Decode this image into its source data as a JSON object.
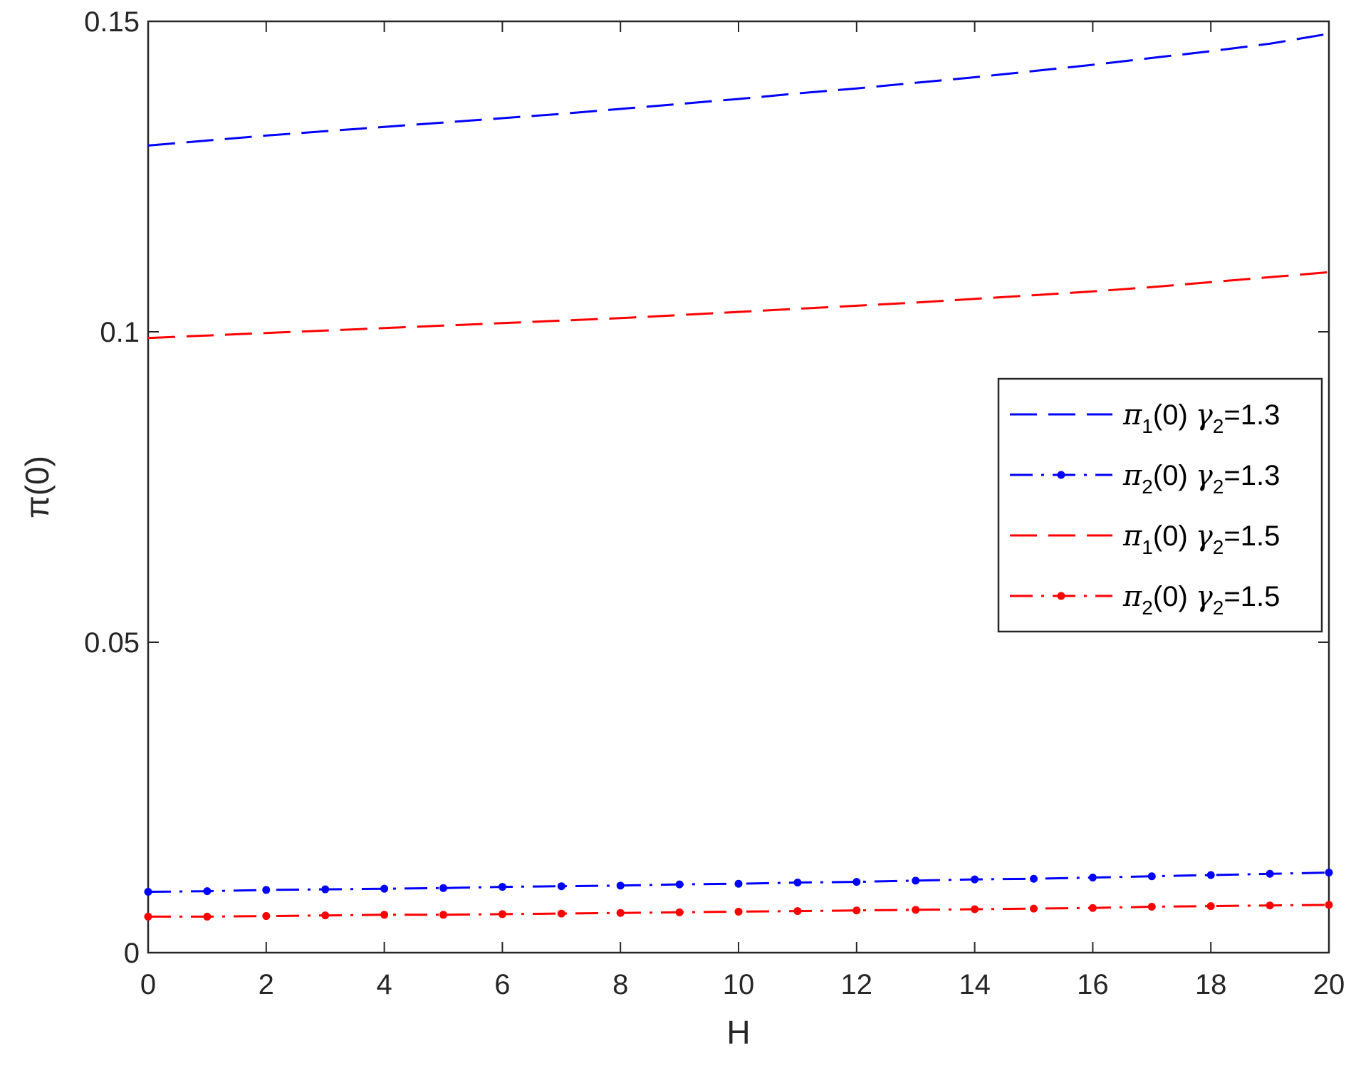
{
  "chart_data": {
    "type": "line",
    "title": "",
    "xlabel": "H",
    "ylabel": "π(0)",
    "xlim": [
      0,
      20
    ],
    "ylim": [
      0,
      0.15
    ],
    "xticks": [
      0,
      2,
      4,
      6,
      8,
      10,
      12,
      14,
      16,
      18,
      20
    ],
    "xtick_labels": [
      "0",
      "2",
      "4",
      "6",
      "8",
      "10",
      "12",
      "14",
      "16",
      "18",
      "20"
    ],
    "yticks": [
      0,
      0.05,
      0.1,
      0.15
    ],
    "ytick_labels": [
      "0",
      "0.05",
      "0.1",
      "0.15"
    ],
    "grid": false,
    "legend_position": "right-middle",
    "x": [
      0,
      1,
      2,
      3,
      4,
      5,
      6,
      7,
      8,
      9,
      10,
      11,
      12,
      13,
      14,
      15,
      16,
      17,
      18,
      19,
      20
    ],
    "series": [
      {
        "name": "π1(0) γ2=1.3",
        "legend": {
          "base": "π",
          "sub1": "1",
          "mid": "(0) ",
          "greek": "γ",
          "sub2": "2",
          "tail": "=1.3"
        },
        "color": "#0000ff",
        "style": "dashed",
        "markers": false,
        "values": [
          0.13,
          0.1308,
          0.1316,
          0.1323,
          0.133,
          0.1337,
          0.1344,
          0.1351,
          0.1359,
          0.1367,
          0.1375,
          0.1384,
          0.1392,
          0.1401,
          0.141,
          0.142,
          0.143,
          0.1441,
          0.1452,
          0.1464,
          0.148
        ]
      },
      {
        "name": "π2(0) γ2=1.3",
        "legend": {
          "base": "π",
          "sub1": "2",
          "mid": "(0) ",
          "greek": "γ",
          "sub2": "2",
          "tail": "=1.3"
        },
        "color": "#0000ff",
        "style": "dashdot",
        "markers": true,
        "values": [
          0.0098,
          0.0099,
          0.0101,
          0.0102,
          0.0103,
          0.0104,
          0.0106,
          0.0107,
          0.0108,
          0.011,
          0.0111,
          0.0113,
          0.0114,
          0.0116,
          0.0118,
          0.0119,
          0.0121,
          0.0123,
          0.0125,
          0.0127,
          0.0129
        ]
      },
      {
        "name": "π1(0) γ2=1.5",
        "legend": {
          "base": "π",
          "sub1": "1",
          "mid": "(0) ",
          "greek": "γ",
          "sub2": "2",
          "tail": "=1.5"
        },
        "color": "#ff0000",
        "style": "dashed",
        "markers": false,
        "values": [
          0.099,
          0.0994,
          0.0998,
          0.1002,
          0.1006,
          0.101,
          0.1014,
          0.1018,
          0.1022,
          0.1027,
          0.1032,
          0.1037,
          0.1042,
          0.1047,
          0.1053,
          0.1059,
          0.1065,
          0.1072,
          0.108,
          0.1088,
          0.1096
        ]
      },
      {
        "name": "π2(0) γ2=1.5",
        "legend": {
          "base": "π",
          "sub1": "2",
          "mid": "(0) ",
          "greek": "γ",
          "sub2": "2",
          "tail": "=1.5"
        },
        "color": "#ff0000",
        "style": "dashdot",
        "markers": true,
        "values": [
          0.0058,
          0.0058,
          0.0059,
          0.006,
          0.0061,
          0.0061,
          0.0062,
          0.0063,
          0.0064,
          0.0065,
          0.0066,
          0.0067,
          0.0068,
          0.0069,
          0.007,
          0.0071,
          0.0072,
          0.0074,
          0.0075,
          0.0076,
          0.0077
        ]
      }
    ]
  }
}
